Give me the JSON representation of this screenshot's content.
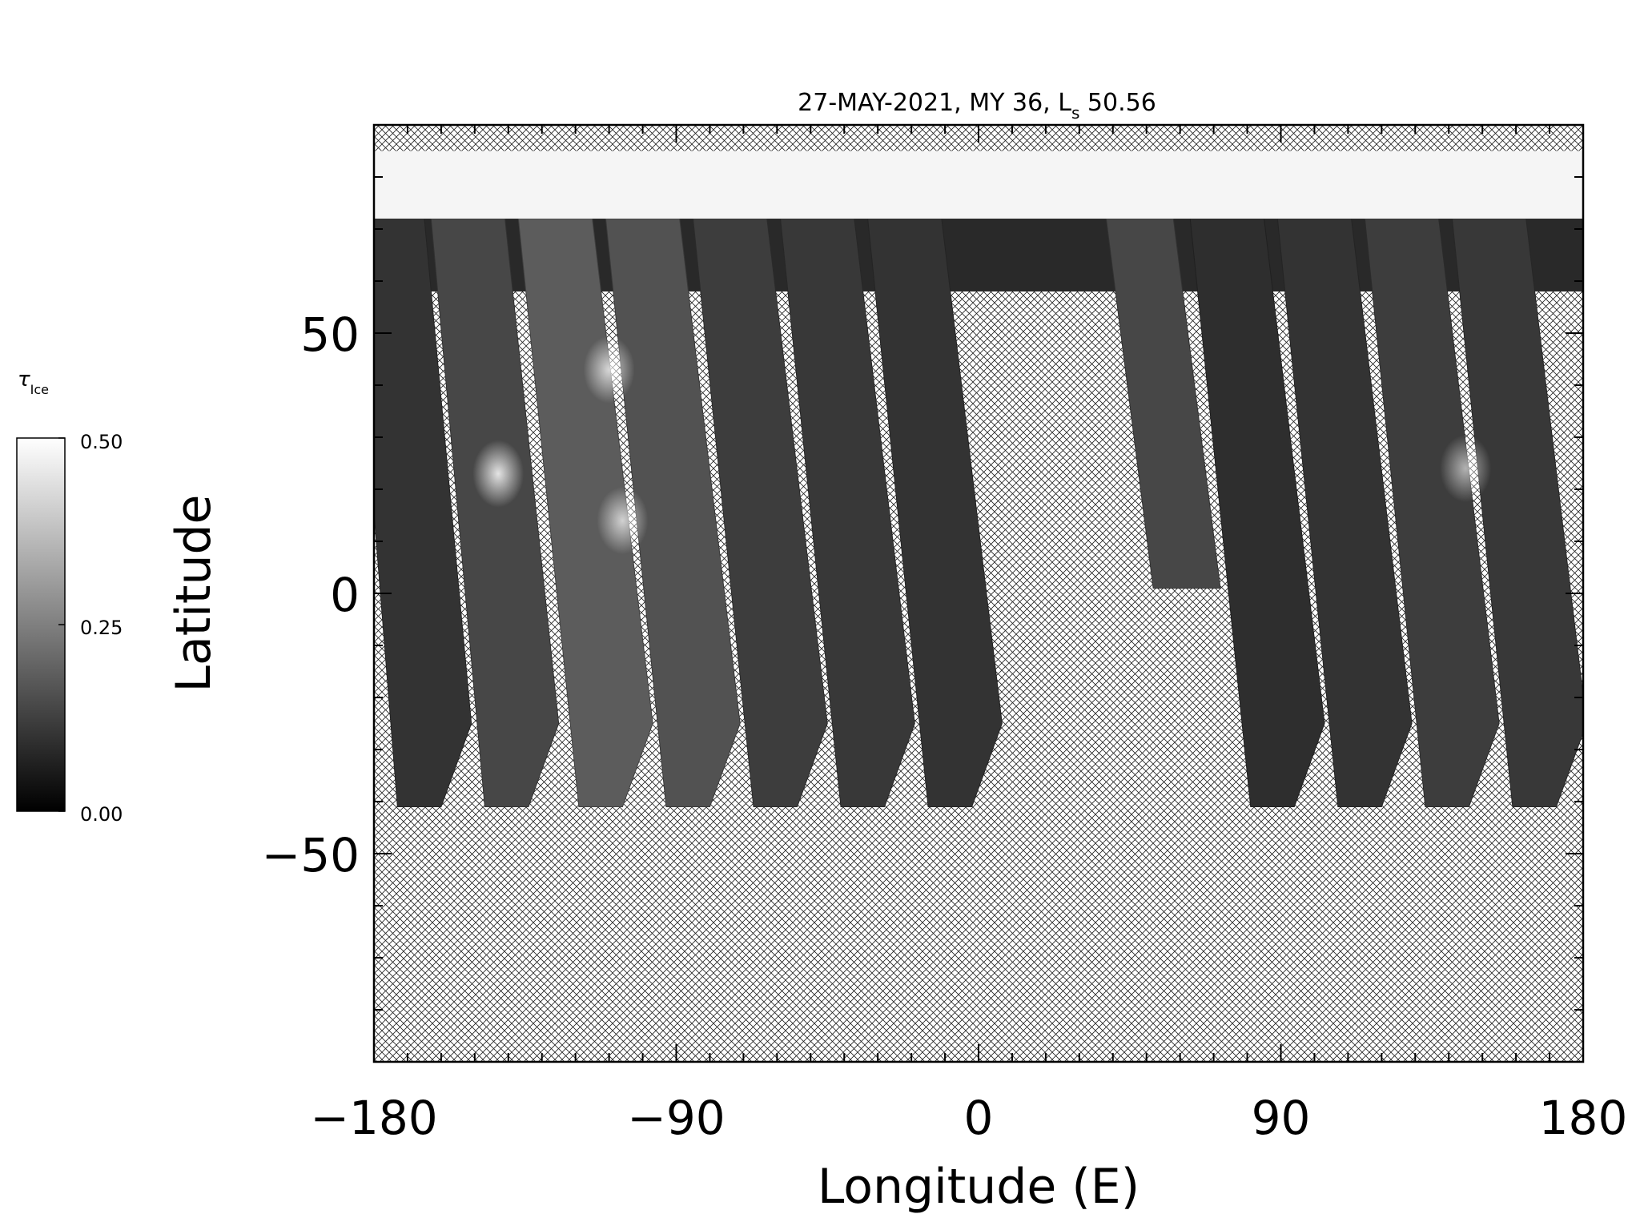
{
  "chart_data": {
    "type": "heatmap",
    "title_main": "27-MAY-2021, MY 36,  L",
    "title_sub": "s",
    "title_value": " 50.56",
    "xlabel": "Longitude (E)",
    "ylabel": "Latitude",
    "xlim": [
      -180,
      180
    ],
    "ylim": [
      -90,
      90
    ],
    "x_ticks": [
      -180,
      -90,
      0,
      90,
      180
    ],
    "x_tick_labels": [
      "−180",
      "−90",
      "0",
      "90",
      "180"
    ],
    "y_ticks": [
      -50,
      0,
      50
    ],
    "y_tick_labels": [
      "−50",
      "0",
      "50"
    ],
    "x_minor_step": 10,
    "y_minor_step": 10,
    "no_data_pattern": "crosshatch",
    "colorbar": {
      "label_main": "τ",
      "label_sub": "Ice",
      "min": 0.0,
      "max": 0.5,
      "tick_labels": [
        "0.50",
        "0.25",
        "0.00"
      ],
      "colormap": "grayscale",
      "color_low": "#000000",
      "color_high": "#ffffff"
    },
    "polar_cap": {
      "lat_min": 72,
      "lat_max": 85,
      "value": 0.48
    },
    "swaths": [
      {
        "top_lon": -176,
        "bottom_lon": -162,
        "bottom_lat": -41,
        "width_deg": 22,
        "value": 0.1
      },
      {
        "top_lon": -152,
        "bottom_lon": -136,
        "bottom_lat": -41,
        "width_deg": 22,
        "value": 0.14
      },
      {
        "top_lon": -126,
        "bottom_lon": -108,
        "bottom_lat": -41,
        "width_deg": 22,
        "value": 0.18
      },
      {
        "top_lon": -100,
        "bottom_lon": -82,
        "bottom_lat": -41,
        "width_deg": 22,
        "value": 0.16
      },
      {
        "top_lon": -74,
        "bottom_lon": -56,
        "bottom_lat": -41,
        "width_deg": 22,
        "value": 0.12
      },
      {
        "top_lon": -48,
        "bottom_lon": -30,
        "bottom_lat": -41,
        "width_deg": 22,
        "value": 0.11
      },
      {
        "top_lon": -22,
        "bottom_lon": -4,
        "bottom_lat": -41,
        "width_deg": 22,
        "value": 0.1
      },
      {
        "top_lon": 48,
        "bottom_lon": 62,
        "bottom_lat": 1,
        "width_deg": 20,
        "value": 0.14
      },
      {
        "top_lon": 74,
        "bottom_lon": 92,
        "bottom_lat": -41,
        "width_deg": 22,
        "value": 0.09
      },
      {
        "top_lon": 100,
        "bottom_lon": 118,
        "bottom_lat": -41,
        "width_deg": 22,
        "value": 0.1
      },
      {
        "top_lon": 126,
        "bottom_lon": 144,
        "bottom_lat": -41,
        "width_deg": 22,
        "value": 0.12
      },
      {
        "top_lon": 152,
        "bottom_lon": 170,
        "bottom_lat": -41,
        "width_deg": 22,
        "value": 0.11
      }
    ],
    "bright_clouds": [
      {
        "lon": -143,
        "lat": 23,
        "value": 0.45
      },
      {
        "lon": -110,
        "lat": 43,
        "value": 0.4
      },
      {
        "lon": -106,
        "lat": 14,
        "value": 0.38
      },
      {
        "lon": 145,
        "lat": 24,
        "value": 0.32
      }
    ]
  }
}
